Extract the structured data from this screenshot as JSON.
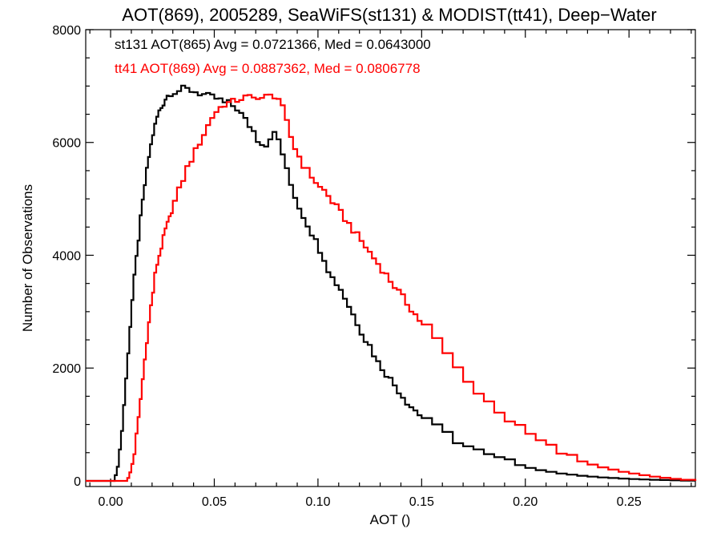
{
  "chart_data": {
    "type": "line",
    "step": true,
    "title": "AOT(869), 2005289, SeaWiFS(st131) & MODIST(tt41), Deep−Water",
    "xlabel": "AOT ()",
    "ylabel": "Number of Observations",
    "xlim": [
      -0.012,
      0.282
    ],
    "ylim": [
      -100,
      8000
    ],
    "xticks": [
      0.0,
      0.05,
      0.1,
      0.15,
      0.2,
      0.25
    ],
    "xtick_labels": [
      "0.00",
      "0.05",
      "0.10",
      "0.15",
      "0.20",
      "0.25"
    ],
    "yticks": [
      0,
      2000,
      4000,
      6000,
      8000
    ],
    "ytick_labels": [
      "0",
      "2000",
      "4000",
      "6000",
      "8000"
    ],
    "grid": false,
    "legend_position": "top-left",
    "series": [
      {
        "name": "st131 AOT(865) Avg = 0.0721366, Med = 0.0643000",
        "color": "#000000",
        "x": [
          -0.012,
          0.002,
          0.003,
          0.004,
          0.005,
          0.006,
          0.007,
          0.008,
          0.009,
          0.01,
          0.011,
          0.012,
          0.013,
          0.014,
          0.015,
          0.016,
          0.017,
          0.018,
          0.019,
          0.02,
          0.021,
          0.022,
          0.023,
          0.024,
          0.025,
          0.026,
          0.027,
          0.028,
          0.03,
          0.032,
          0.034,
          0.036,
          0.038,
          0.04,
          0.042,
          0.044,
          0.046,
          0.048,
          0.05,
          0.052,
          0.054,
          0.056,
          0.058,
          0.06,
          0.062,
          0.064,
          0.066,
          0.068,
          0.07,
          0.072,
          0.074,
          0.076,
          0.078,
          0.08,
          0.082,
          0.084,
          0.086,
          0.088,
          0.09,
          0.092,
          0.094,
          0.096,
          0.098,
          0.1,
          0.102,
          0.104,
          0.106,
          0.108,
          0.11,
          0.112,
          0.114,
          0.116,
          0.118,
          0.12,
          0.122,
          0.124,
          0.126,
          0.128,
          0.13,
          0.132,
          0.134,
          0.136,
          0.138,
          0.14,
          0.142,
          0.144,
          0.146,
          0.148,
          0.15,
          0.155,
          0.16,
          0.165,
          0.17,
          0.175,
          0.18,
          0.185,
          0.19,
          0.195,
          0.2,
          0.205,
          0.21,
          0.215,
          0.22,
          0.225,
          0.23,
          0.235,
          0.24,
          0.245,
          0.25,
          0.255,
          0.26,
          0.265,
          0.27,
          0.275,
          0.282
        ],
        "y": [
          0,
          100,
          250,
          550,
          900,
          1350,
          1800,
          2300,
          2750,
          3200,
          3600,
          3950,
          4300,
          4650,
          4950,
          5250,
          5500,
          5750,
          5950,
          6150,
          6300,
          6450,
          6550,
          6620,
          6700,
          6780,
          6830,
          6880,
          6900,
          6920,
          6950,
          6940,
          6920,
          6900,
          6870,
          6850,
          6820,
          6800,
          6780,
          6750,
          6700,
          6700,
          6650,
          6600,
          6500,
          6400,
          6300,
          6200,
          6050,
          6000,
          5950,
          6100,
          6150,
          6050,
          5800,
          5500,
          5250,
          5050,
          4850,
          4700,
          4550,
          4400,
          4250,
          4100,
          3950,
          3750,
          3600,
          3500,
          3400,
          3250,
          3100,
          2950,
          2800,
          2650,
          2500,
          2400,
          2250,
          2100,
          2000,
          1900,
          1800,
          1700,
          1600,
          1500,
          1400,
          1320,
          1250,
          1180,
          1120,
          950,
          830,
          710,
          610,
          530,
          440,
          390,
          330,
          280,
          230,
          190,
          160,
          130,
          110,
          90,
          75,
          60,
          50,
          40,
          32,
          25,
          20,
          15,
          10,
          5,
          0
        ]
      },
      {
        "name": "tt41 AOT(869) Avg = 0.0887362, Med = 0.0806778",
        "color": "#ff0000",
        "x": [
          -0.012,
          0.008,
          0.009,
          0.01,
          0.011,
          0.012,
          0.013,
          0.014,
          0.015,
          0.016,
          0.017,
          0.018,
          0.019,
          0.02,
          0.021,
          0.022,
          0.023,
          0.024,
          0.025,
          0.026,
          0.027,
          0.028,
          0.029,
          0.03,
          0.032,
          0.034,
          0.036,
          0.038,
          0.04,
          0.042,
          0.044,
          0.046,
          0.048,
          0.05,
          0.052,
          0.054,
          0.056,
          0.058,
          0.06,
          0.062,
          0.064,
          0.066,
          0.068,
          0.07,
          0.072,
          0.074,
          0.076,
          0.078,
          0.08,
          0.082,
          0.084,
          0.086,
          0.088,
          0.09,
          0.092,
          0.094,
          0.096,
          0.098,
          0.1,
          0.102,
          0.104,
          0.106,
          0.108,
          0.11,
          0.112,
          0.114,
          0.116,
          0.118,
          0.12,
          0.122,
          0.124,
          0.126,
          0.128,
          0.13,
          0.132,
          0.134,
          0.136,
          0.138,
          0.14,
          0.142,
          0.144,
          0.146,
          0.148,
          0.15,
          0.155,
          0.16,
          0.165,
          0.17,
          0.175,
          0.18,
          0.185,
          0.19,
          0.195,
          0.2,
          0.205,
          0.21,
          0.215,
          0.22,
          0.225,
          0.23,
          0.235,
          0.24,
          0.245,
          0.25,
          0.255,
          0.26,
          0.265,
          0.27,
          0.275,
          0.282
        ],
        "y": [
          0,
          50,
          150,
          300,
          500,
          800,
          1100,
          1450,
          1800,
          2150,
          2500,
          2800,
          3100,
          3350,
          3650,
          3850,
          4000,
          4150,
          4300,
          4450,
          4550,
          4650,
          4800,
          4950,
          5150,
          5350,
          5550,
          5700,
          5850,
          6000,
          6150,
          6300,
          6450,
          6550,
          6620,
          6680,
          6700,
          6720,
          6750,
          6780,
          6800,
          6800,
          6780,
          6820,
          6790,
          6810,
          6820,
          6830,
          6780,
          6600,
          6350,
          6100,
          5900,
          5750,
          5600,
          5500,
          5400,
          5300,
          5200,
          5150,
          5050,
          4950,
          4850,
          4750,
          4650,
          4550,
          4450,
          4350,
          4250,
          4150,
          4050,
          3950,
          3850,
          3750,
          3650,
          3550,
          3450,
          3350,
          3250,
          3150,
          3050,
          2950,
          2850,
          2750,
          2500,
          2250,
          2000,
          1800,
          1550,
          1400,
          1250,
          1080,
          940,
          820,
          700,
          600,
          500,
          420,
          350,
          290,
          240,
          200,
          160,
          130,
          100,
          75,
          55,
          35,
          20,
          0
        ]
      }
    ]
  }
}
